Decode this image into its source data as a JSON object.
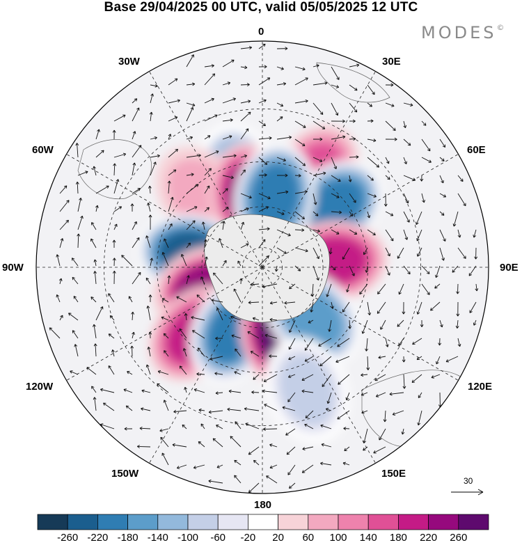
{
  "title": "Base 29/04/2025 00 UTC, valid 05/05/2025 12 UTC",
  "brand": {
    "name": "MODES",
    "mark": "©"
  },
  "meridian_labels": {
    "lon_0": "0",
    "lon_30e": "30E",
    "lon_60e": "60E",
    "lon_90e": "90E",
    "lon_120e": "120E",
    "lon_150e": "150E",
    "lon_180": "180",
    "lon_150w": "150W",
    "lon_120w": "120W",
    "lon_90w": "90W",
    "lon_60w": "60W",
    "lon_30w": "30W"
  },
  "reference_vector": {
    "label": "30"
  },
  "colorbar": {
    "tick_labels": [
      "-260",
      "-220",
      "-180",
      "-140",
      "-100",
      "-60",
      "-20",
      "20",
      "60",
      "100",
      "140",
      "180",
      "220",
      "260"
    ],
    "colors": [
      "#163a57",
      "#1b5e8e",
      "#2f7db3",
      "#5c9dca",
      "#93b9dc",
      "#c4cfe7",
      "#e6e6f3",
      "#ffffff",
      "#f7d3d8",
      "#f3a9c0",
      "#ee82ad",
      "#e05096",
      "#c41b86",
      "#96097d",
      "#5e0a6e"
    ]
  },
  "map_data": {
    "projection": "south-polar-stereographic",
    "field": "anomaly with wind vectors",
    "anomaly_cells": [
      {
        "lon": -15,
        "lat": -45,
        "value": -120
      },
      {
        "lon": 30,
        "lat": -40,
        "value": 160
      },
      {
        "lon": 50,
        "lat": -45,
        "value": -200
      },
      {
        "lon": 85,
        "lat": -55,
        "value": 200
      },
      {
        "lon": -40,
        "lat": -45,
        "value": 80
      },
      {
        "lon": -10,
        "lat": -55,
        "value": 230
      },
      {
        "lon": 10,
        "lat": -55,
        "value": -190
      },
      {
        "lon": -80,
        "lat": -55,
        "value": -230
      },
      {
        "lon": -110,
        "lat": -60,
        "value": 250
      },
      {
        "lon": -135,
        "lat": -45,
        "value": 180
      },
      {
        "lon": -155,
        "lat": -55,
        "value": -220
      },
      {
        "lon": 165,
        "lat": -55,
        "value": 260
      },
      {
        "lon": 135,
        "lat": -55,
        "value": -160
      },
      {
        "lon": 160,
        "lat": -30,
        "value": -90
      }
    ]
  }
}
